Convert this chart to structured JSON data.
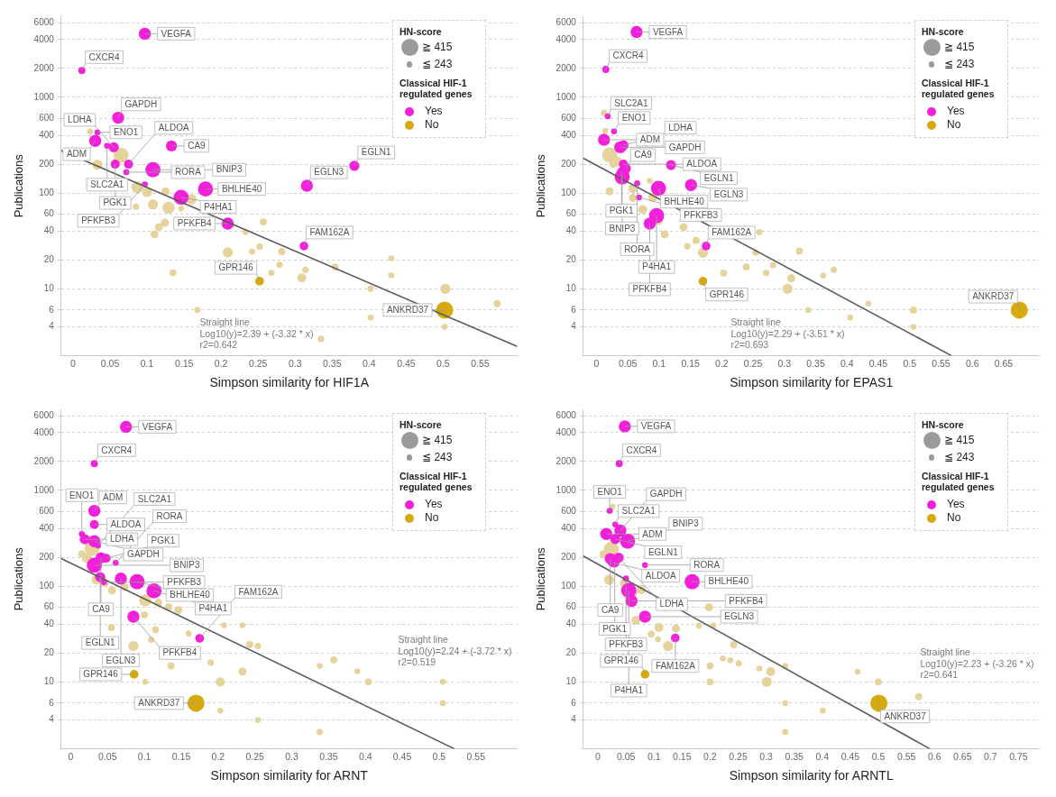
{
  "chart_data": [
    {
      "type": "bubble",
      "xlabel": "Simpson similarity for HIF1A",
      "ylabel": "Publications",
      "log": "y",
      "grid": "y",
      "legend": "top right",
      "legend_title": [
        "HN-score",
        "Classical HIF-1 regulated genes"
      ],
      "size_legend": [
        {
          "value": 1,
          "label": "≧ 415"
        },
        {
          "value": 0.12,
          "label": "≦ 243"
        }
      ],
      "xlim": [
        -0.016,
        0.6
      ],
      "xticks": [
        0,
        0.05,
        0.1,
        0.15,
        0.2,
        0.25,
        0.3,
        0.35,
        0.4,
        0.45,
        0.5,
        0.55
      ],
      "ylim": [
        2,
        7000
      ],
      "yticks": [
        4,
        6,
        10,
        20,
        40,
        60,
        100,
        200,
        400,
        600,
        1000,
        2000,
        4000,
        6000
      ],
      "series": [
        {
          "type": "bubble",
          "color": "#e6d39c",
          "x": [
            0.065,
            0.033,
            0.023,
            0.06,
            0.087,
            0.1,
            0.125,
            0.16,
            0.108,
            0.129,
            0.146,
            0.116,
            0.124,
            0.11,
            0.085,
            0.257,
            0.233,
            0.209,
            0.242,
            0.252,
            0.282,
            0.279,
            0.268,
            0.135,
            0.309,
            0.314,
            0.354,
            0.402,
            0.43,
            0.43,
            0.503,
            0.573,
            0.402,
            0.335,
            0.502,
            0.168
          ],
          "values": [
            247,
            197,
            438,
            216,
            115,
            102,
            104,
            86,
            76,
            70,
            69,
            44,
            49,
            37,
            72,
            50,
            39,
            24,
            24.5,
            27.5,
            24.5,
            17.8,
            14.7,
            14.7,
            13,
            15.8,
            16.9,
            10,
            20.8,
            13.8,
            10,
            7,
            5,
            3,
            4,
            6
          ],
          "sizes": [
            0.78,
            0.35,
            0.12,
            0.22,
            0.5,
            0.35,
            0.22,
            0.35,
            0.35,
            0.5,
            0.12,
            0.22,
            0.22,
            0.22,
            0.14,
            0.17,
            0.12,
            0.35,
            0.14,
            0.14,
            0.17,
            0.14,
            0.14,
            0.17,
            0.28,
            0.14,
            0.17,
            0.14,
            0.12,
            0.12,
            0.35,
            0.17,
            0.12,
            0.14,
            0.12,
            0.12
          ]
        },
        {
          "type": "bubble",
          "name": "Yes",
          "color": "#f21fdb",
          "x": [
            0.097,
            0.012,
            0.061,
            0.033,
            0.03,
            0.046,
            0.055,
            0.057,
            0.075,
            0.072,
            0.133,
            0.108,
            0.179,
            0.097,
            0.146,
            0.209,
            0.312,
            0.316,
            0.38
          ],
          "values": [
            4600,
            1900,
            610,
            430,
            350,
            310,
            300,
            200,
            200,
            165,
            310,
            175,
            110,
            123,
            90,
            48,
            28,
            119,
            192
          ],
          "sizes": [
            0.5,
            0.17,
            0.5,
            0.12,
            0.5,
            0.12,
            0.35,
            0.28,
            0.28,
            0.12,
            0.42,
            0.78,
            0.78,
            0.12,
            0.78,
            0.5,
            0.26,
            0.5,
            0.35
          ]
        },
        {
          "type": "bubble",
          "name": "No",
          "color": "#d6a90e",
          "x": [
            0.252,
            0.502
          ],
          "values": [
            12,
            6
          ],
          "sizes": [
            0.26,
            1
          ]
        },
        {
          "type": "line",
          "color": "#5c5c5c",
          "x": [
            -0.016,
            0.6
          ],
          "values": [
            277,
            2.5
          ]
        }
      ],
      "annotations": [
        {
          "text": "VEGFA",
          "x": 0.097,
          "y": 4600
        },
        {
          "text": "CXCR4",
          "x": 0.012,
          "y": 1900
        },
        {
          "text": "GAPDH",
          "x": 0.061,
          "y": 610
        },
        {
          "text": "ENO1",
          "x": 0.033,
          "y": 430
        },
        {
          "text": "ADM",
          "x": 0.03,
          "y": 350
        },
        {
          "text": "SLC2A1",
          "x": 0.046,
          "y": 310
        },
        {
          "text": "LDHA",
          "x": 0.055,
          "y": 300
        },
        {
          "text": "PGK1",
          "x": 0.057,
          "y": 200
        },
        {
          "text": "ALDOA",
          "x": 0.075,
          "y": 200
        },
        {
          "text": "RORA",
          "x": 0.072,
          "y": 165
        },
        {
          "text": "CA9",
          "x": 0.133,
          "y": 310
        },
        {
          "text": "BNIP3",
          "x": 0.108,
          "y": 175
        },
        {
          "text": "BHLHE40",
          "x": 0.179,
          "y": 110
        },
        {
          "text": "PFKFB3",
          "x": 0.097,
          "y": 123
        },
        {
          "text": "P4HA1",
          "x": 0.146,
          "y": 90
        },
        {
          "text": "PFKFB4",
          "x": 0.209,
          "y": 48
        },
        {
          "text": "FAM162A",
          "x": 0.312,
          "y": 28
        },
        {
          "text": "EGLN3",
          "x": 0.316,
          "y": 119
        },
        {
          "text": "EGLN1",
          "x": 0.38,
          "y": 192
        },
        {
          "text": "GPR146",
          "x": 0.252,
          "y": 12
        },
        {
          "text": "ANKRD37",
          "x": 0.502,
          "y": 6
        },
        "Straight line",
        "Log10(y)=2.39 + (-3.32 * x)",
        "r2=0.642"
      ]
    },
    {
      "type": "bubble",
      "xlabel": "Simpson similarity for EPAS1",
      "ylabel": "Publications",
      "log": "y",
      "grid": "y",
      "legend": "top right",
      "legend_title": [
        "HN-score",
        "Classical HIF-1 regulated genes"
      ],
      "size_legend": [
        {
          "value": 1,
          "label": "≧ 415"
        },
        {
          "value": 0.12,
          "label": "≦ 243"
        }
      ],
      "xlim": [
        -0.021,
        0.707
      ],
      "xticks": [
        0,
        0.05,
        0.1,
        0.15,
        0.2,
        0.25,
        0.3,
        0.35,
        0.4,
        0.45,
        0.5,
        0.55,
        0.6,
        0.65
      ],
      "ylim": [
        2,
        7000
      ],
      "yticks": [
        4,
        6,
        10,
        20,
        40,
        60,
        100,
        200,
        400,
        600,
        1000,
        2000,
        4000,
        6000
      ],
      "series": [
        {
          "type": "bubble",
          "color": "#e6d39c",
          "x": [
            0.021,
            0.032,
            0.027,
            0.012,
            0.014,
            0.058,
            0.058,
            0.021,
            0.085,
            0.09,
            0.074,
            0.099,
            0.139,
            0.109,
            0.159,
            0.17,
            0.145,
            0.26,
            0.254,
            0.324,
            0.239,
            0.282,
            0.203,
            0.271,
            0.311,
            0.305,
            0.362,
            0.379,
            0.434,
            0.506,
            0.405,
            0.506,
            0.338
          ],
          "values": [
            250,
            214,
            201,
            684,
            447,
            111,
            89,
            104,
            134,
            90,
            67,
            51,
            44,
            37,
            32,
            23.8,
            27.8,
            39,
            23.8,
            24.8,
            16.9,
            17.7,
            14.6,
            14.6,
            12.9,
            10,
            13.7,
            15.8,
            7,
            6,
            5,
            4,
            6
          ],
          "sizes": [
            0.78,
            0.35,
            0.22,
            0.14,
            0.12,
            0.28,
            0.22,
            0.22,
            0.12,
            0.28,
            0.28,
            0.22,
            0.22,
            0.22,
            0.17,
            0.35,
            0.14,
            0.14,
            0.14,
            0.17,
            0.17,
            0.14,
            0.17,
            0.14,
            0.22,
            0.35,
            0.12,
            0.14,
            0.12,
            0.17,
            0.12,
            0.12,
            0.12
          ]
        },
        {
          "type": "bubble",
          "name": "Yes",
          "color": "#f21fdb",
          "x": [
            0.064,
            0.015,
            0.018,
            0.028,
            0.012,
            0.038,
            0.043,
            0.043,
            0.046,
            0.119,
            0.099,
            0.151,
            0.04,
            0.041,
            0.065,
            0.068,
            0.096,
            0.085,
            0.175
          ],
          "values": [
            4800,
            1950,
            630,
            440,
            360,
            300,
            315,
            200,
            180,
            196,
            112,
            121,
            166,
            147,
            126,
            90,
            58,
            48,
            28
          ],
          "sizes": [
            0.5,
            0.17,
            0.12,
            0.12,
            0.5,
            0.5,
            0.35,
            0.28,
            0.42,
            0.35,
            0.78,
            0.5,
            0.28,
            0.78,
            0.12,
            0.12,
            0.78,
            0.5,
            0.26
          ]
        },
        {
          "type": "bubble",
          "name": "No",
          "color": "#d6a90e",
          "x": [
            0.17,
            0.675
          ],
          "values": [
            12,
            6
          ],
          "sizes": [
            0.26,
            1
          ]
        },
        {
          "type": "line",
          "color": "#5c5c5c",
          "x": [
            -0.021,
            0.567
          ],
          "values": [
            231,
            2
          ]
        }
      ],
      "annotations": [
        {
          "text": "VEGFA",
          "x": 0.064,
          "y": 4800
        },
        {
          "text": "CXCR4",
          "x": 0.015,
          "y": 1950
        },
        {
          "text": "SLC2A1",
          "x": 0.018,
          "y": 630
        },
        {
          "text": "ENO1",
          "x": 0.028,
          "y": 440
        },
        {
          "text": "ADM",
          "x": 0.012,
          "y": 360
        },
        {
          "text": "GAPDH",
          "x": 0.038,
          "y": 300
        },
        {
          "text": "LDHA",
          "x": 0.043,
          "y": 315
        },
        {
          "text": "ALDOA",
          "x": 0.043,
          "y": 200
        },
        {
          "text": "CA9",
          "x": 0.046,
          "y": 180
        },
        {
          "text": "EGLN1",
          "x": 0.119,
          "y": 196
        },
        {
          "text": "BHLHE40",
          "x": 0.099,
          "y": 112
        },
        {
          "text": "EGLN3",
          "x": 0.151,
          "y": 121
        },
        {
          "text": "PGK1",
          "x": 0.04,
          "y": 166
        },
        {
          "text": "BNIP3",
          "x": 0.041,
          "y": 147
        },
        {
          "text": "RORA",
          "x": 0.065,
          "y": 126
        },
        {
          "text": "PFKFB3",
          "x": 0.068,
          "y": 90
        },
        {
          "text": "P4HA1",
          "x": 0.096,
          "y": 58
        },
        {
          "text": "PFKFB4",
          "x": 0.085,
          "y": 48
        },
        {
          "text": "FAM162A",
          "x": 0.175,
          "y": 28
        },
        {
          "text": "GPR146",
          "x": 0.17,
          "y": 12
        },
        {
          "text": "ANKRD37",
          "x": 0.675,
          "y": 6
        },
        "Straight line",
        "Log10(y)=2.29 + (-3.51 * x)",
        "r2=0.693"
      ]
    },
    {
      "type": "bubble",
      "xlabel": "Simpson similarity for ARNT",
      "ylabel": "Publications",
      "log": "y",
      "grid": "y",
      "legend": "top right",
      "legend_title": [
        "HN-score",
        "Classical HIF-1 regulated genes"
      ],
      "size_legend": [
        {
          "value": 1,
          "label": "≧ 415"
        },
        {
          "value": 0.12,
          "label": "≦ 243"
        }
      ],
      "xlim": [
        -0.013,
        0.606
      ],
      "xticks": [
        0,
        0.05,
        0.1,
        0.15,
        0.2,
        0.25,
        0.3,
        0.35,
        0.4,
        0.45,
        0.5,
        0.55
      ],
      "ylim": [
        2,
        7000
      ],
      "yticks": [
        4,
        6,
        10,
        20,
        40,
        60,
        100,
        200,
        400,
        600,
        1000,
        2000,
        4000,
        6000
      ],
      "series": [
        {
          "type": "bubble",
          "color": "#e6d39c",
          "x": [
            0.029,
            0.022,
            0.015,
            0.035,
            0.046,
            0.056,
            0.073,
            0.101,
            0.119,
            0.133,
            0.146,
            0.1,
            0.115,
            0.16,
            0.055,
            0.085,
            0.109,
            0.208,
            0.233,
            0.243,
            0.254,
            0.136,
            0.19,
            0.233,
            0.203,
            0.357,
            0.404,
            0.389,
            0.338,
            0.505,
            0.505,
            0.203,
            0.254,
            0.338,
            0.101
          ],
          "values": [
            248,
            197,
            216,
            117,
            108,
            90,
            98,
            71,
            67,
            61,
            56,
            50,
            35,
            32,
            37,
            23.7,
            27.6,
            39,
            39,
            24.6,
            23.7,
            14.7,
            15.9,
            12.8,
            10,
            17,
            10,
            12.9,
            14.7,
            10,
            6,
            5,
            4,
            3,
            10
          ],
          "sizes": [
            0.78,
            0.35,
            0.17,
            0.35,
            0.22,
            0.22,
            0.22,
            0.5,
            0.22,
            0.17,
            0.22,
            0.17,
            0.17,
            0.12,
            0.17,
            0.35,
            0.14,
            0.12,
            0.12,
            0.17,
            0.14,
            0.17,
            0.14,
            0.22,
            0.28,
            0.17,
            0.17,
            0.12,
            0.12,
            0.12,
            0.12,
            0.12,
            0.12,
            0.14,
            0.12
          ]
        },
        {
          "type": "bubble",
          "name": "Yes",
          "color": "#f21fdb",
          "x": [
            0.075,
            0.032,
            0.032,
            0.032,
            0.015,
            0.019,
            0.032,
            0.037,
            0.041,
            0.048,
            0.061,
            0.032,
            0.04,
            0.045,
            0.068,
            0.09,
            0.113,
            0.085,
            0.175
          ],
          "values": [
            4600,
            1900,
            610,
            440,
            350,
            308,
            294,
            265,
            197,
            195,
            175,
            165,
            124,
            110,
            120,
            111,
            89,
            48,
            28.5
          ],
          "sizes": [
            0.5,
            0.17,
            0.5,
            0.28,
            0.12,
            0.35,
            0.5,
            0.12,
            0.42,
            0.28,
            0.12,
            0.78,
            0.35,
            0.12,
            0.5,
            0.78,
            0.78,
            0.5,
            0.26
          ]
        },
        {
          "type": "bubble",
          "name": "No",
          "color": "#d6a90e",
          "x": [
            0.086,
            0.17
          ],
          "values": [
            12,
            6
          ],
          "sizes": [
            0.26,
            1
          ]
        },
        {
          "type": "line",
          "color": "#5c5c5c",
          "x": [
            -0.013,
            0.521
          ],
          "values": [
            194,
            2
          ]
        }
      ],
      "annotations": [
        {
          "text": "VEGFA",
          "x": 0.075,
          "y": 4600
        },
        {
          "text": "CXCR4",
          "x": 0.032,
          "y": 1900
        },
        {
          "text": "ADM",
          "x": 0.032,
          "y": 610
        },
        {
          "text": "ALDOA",
          "x": 0.032,
          "y": 440
        },
        {
          "text": "ENO1",
          "x": 0.015,
          "y": 350
        },
        {
          "text": "LDHA",
          "x": 0.019,
          "y": 308
        },
        {
          "text": "GAPDH",
          "x": 0.032,
          "y": 294
        },
        {
          "text": "SLC2A1",
          "x": 0.037,
          "y": 265
        },
        {
          "text": "CA9",
          "x": 0.041,
          "y": 197
        },
        {
          "text": "PGK1",
          "x": 0.048,
          "y": 195
        },
        {
          "text": "RORA",
          "x": 0.061,
          "y": 175
        },
        {
          "text": "BNIP3",
          "x": 0.032,
          "y": 165
        },
        {
          "text": "EGLN1",
          "x": 0.04,
          "y": 124
        },
        {
          "text": "PFKFB3",
          "x": 0.045,
          "y": 110
        },
        {
          "text": "EGLN3",
          "x": 0.068,
          "y": 120
        },
        {
          "text": "BHLHE40",
          "x": 0.09,
          "y": 111
        },
        {
          "text": "P4HA1",
          "x": 0.113,
          "y": 89
        },
        {
          "text": "PFKFB4",
          "x": 0.085,
          "y": 48
        },
        {
          "text": "FAM162A",
          "x": 0.175,
          "y": 28.5
        },
        {
          "text": "GPR146",
          "x": 0.086,
          "y": 12
        },
        {
          "text": "ANKRD37",
          "x": 0.17,
          "y": 6
        },
        "Straight line",
        "Log10(y)=2.24 + (-3.72 * x)",
        "r2=0.519"
      ]
    },
    {
      "type": "bubble",
      "xlabel": "Simpson similarity for ARNTL",
      "ylabel": "Publications",
      "log": "y",
      "grid": "y",
      "legend": "top right",
      "legend_title": [
        "HN-score",
        "Classical HIF-1 regulated genes"
      ],
      "size_legend": [
        {
          "value": 1,
          "label": "≧ 415"
        },
        {
          "value": 0.12,
          "label": "≦ 243"
        }
      ],
      "xlim": [
        -0.026,
        0.787
      ],
      "xticks": [
        0,
        0.05,
        0.1,
        0.15,
        0.2,
        0.25,
        0.3,
        0.35,
        0.4,
        0.45,
        0.5,
        0.55,
        0.6,
        0.65,
        0.7,
        0.75
      ],
      "ylim": [
        2,
        7000
      ],
      "yticks": [
        4,
        6,
        10,
        20,
        40,
        60,
        100,
        200,
        400,
        600,
        1000,
        2000,
        4000,
        6000
      ],
      "series": [
        {
          "type": "bubble",
          "color": "#e6d39c",
          "x": [
            0.024,
            0.01,
            0.026,
            0.02,
            0.048,
            0.077,
            0.063,
            0.198,
            0.068,
            0.109,
            0.139,
            0.095,
            0.107,
            0.125,
            0.18,
            0.206,
            0.242,
            0.223,
            0.236,
            0.251,
            0.2,
            0.308,
            0.301,
            0.2,
            0.288,
            0.334,
            0.463,
            0.5,
            0.572,
            0.401,
            0.334,
            0.334
          ],
          "values": [
            243,
            215,
            672,
            116,
            107,
            92,
            85,
            60,
            44,
            37,
            36,
            31.5,
            27.9,
            23.6,
            38.7,
            38.7,
            24.5,
            17.6,
            16.8,
            15.6,
            14.7,
            12.8,
            10,
            10,
            13.8,
            14.7,
            12.8,
            10,
            7,
            5,
            6,
            3
          ],
          "sizes": [
            0.78,
            0.22,
            0.12,
            0.35,
            0.35,
            0.28,
            0.22,
            0.22,
            0.28,
            0.28,
            0.22,
            0.17,
            0.12,
            0.35,
            0.12,
            0.12,
            0.17,
            0.12,
            0.12,
            0.14,
            0.17,
            0.28,
            0.35,
            0.17,
            0.12,
            0.12,
            0.12,
            0.17,
            0.17,
            0.12,
            0.12,
            0.12
          ]
        },
        {
          "type": "bubble",
          "name": "Yes",
          "color": "#f21fdb",
          "x": [
            0.048,
            0.038,
            0.021,
            0.031,
            0.015,
            0.031,
            0.04,
            0.053,
            0.022,
            0.037,
            0.026,
            0.03,
            0.084,
            0.05,
            0.168,
            0.055,
            0.06,
            0.084,
            0.138
          ],
          "values": [
            4650,
            1900,
            610,
            440,
            350,
            310,
            380,
            294,
            193,
            198,
            176,
            174,
            166,
            120,
            111,
            90,
            70,
            48,
            28.7
          ],
          "sizes": [
            0.5,
            0.17,
            0.12,
            0.12,
            0.5,
            0.35,
            0.5,
            0.78,
            0.42,
            0.35,
            0.28,
            0.28,
            0.12,
            0.12,
            0.78,
            0.78,
            0.5,
            0.5,
            0.26
          ]
        },
        {
          "type": "bubble",
          "name": "No",
          "color": "#d6a90e",
          "x": [
            0.084,
            0.501
          ],
          "values": [
            12,
            6
          ],
          "sizes": [
            0.26,
            1
          ]
        },
        {
          "type": "line",
          "color": "#5c5c5c",
          "x": [
            -0.026,
            0.592
          ],
          "values": [
            206,
            2
          ]
        }
      ],
      "annotations": [
        {
          "text": "VEGFA",
          "x": 0.048,
          "y": 4650
        },
        {
          "text": "CXCR4",
          "x": 0.038,
          "y": 1900
        },
        {
          "text": "ENO1",
          "x": 0.021,
          "y": 610
        },
        {
          "text": "SLC2A1",
          "x": 0.031,
          "y": 440
        },
        {
          "text": "ADM",
          "x": 0.015,
          "y": 350
        },
        {
          "text": "EGLN1",
          "x": 0.031,
          "y": 310
        },
        {
          "text": "GAPDH",
          "x": 0.04,
          "y": 380
        },
        {
          "text": "BNIP3",
          "x": 0.053,
          "y": 294
        },
        {
          "text": "CA9",
          "x": 0.022,
          "y": 193
        },
        {
          "text": "LDHA",
          "x": 0.037,
          "y": 198
        },
        {
          "text": "ALDOA",
          "x": 0.026,
          "y": 176
        },
        {
          "text": "PGK1",
          "x": 0.03,
          "y": 174
        },
        {
          "text": "RORA",
          "x": 0.084,
          "y": 166
        },
        {
          "text": "PFKFB3",
          "x": 0.05,
          "y": 120
        },
        {
          "text": "BHLHE40",
          "x": 0.168,
          "y": 111
        },
        {
          "text": "P4HA1",
          "x": 0.055,
          "y": 90
        },
        {
          "text": "PFKFB4",
          "x": 0.06,
          "y": 70
        },
        {
          "text": "EGLN3",
          "x": 0.084,
          "y": 48
        },
        {
          "text": "FAM162A",
          "x": 0.138,
          "y": 28.7
        },
        {
          "text": "GPR146",
          "x": 0.084,
          "y": 12
        },
        {
          "text": "ANKRD37",
          "x": 0.501,
          "y": 6
        },
        "Straight line",
        "Log10(y)=2.23 + (-3.26 * x)",
        "r2=0.641"
      ]
    }
  ]
}
